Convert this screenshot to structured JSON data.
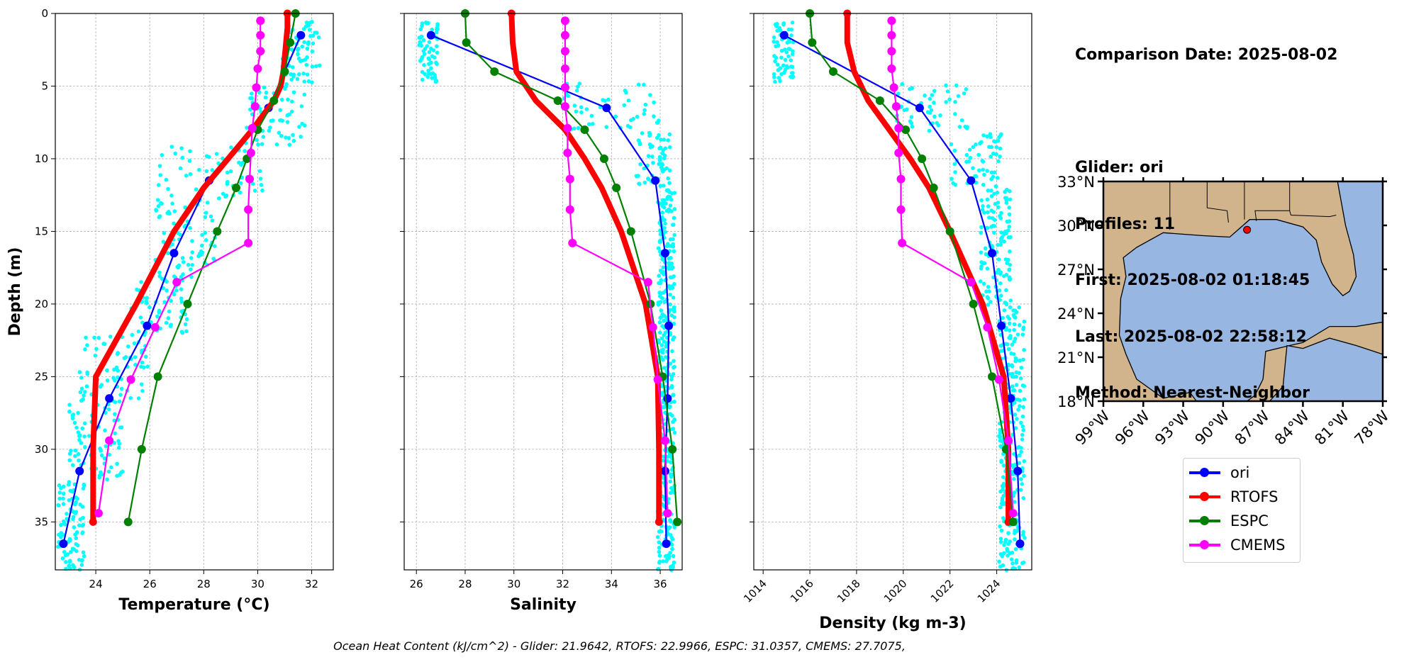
{
  "info": {
    "date_line": "Comparison Date: 2025-08-02",
    "glider_line": "Glider: ori",
    "profiles_line": "Profiles: 11",
    "first_line": "First: 2025-08-02 01:18:45",
    "last_line": "Last: 2025-08-02 22:58:12",
    "method_line": "Method: Nearest-Neighbor"
  },
  "footer": "Ocean Heat Content (kJ/cm^2) - Glider: 21.9642,  RTOFS: 22.9966,  ESPC: 31.0357,  CMEMS: 27.7075,",
  "legend": [
    {
      "name": "ori",
      "color": "#0000ff"
    },
    {
      "name": "RTOFS",
      "color": "#ff0000"
    },
    {
      "name": "ESPC",
      "color": "#008000"
    },
    {
      "name": "CMEMS",
      "color": "#ff00ff"
    }
  ],
  "colors": {
    "glider_obs": "#00ffff",
    "ori": "#0000ff",
    "RTOFS": "#ff0000",
    "ESPC": "#008000",
    "CMEMS": "#ff00ff",
    "land": "#d2b48c",
    "ocean": "#98b6e2"
  },
  "chart_data": [
    {
      "type": "line",
      "xlabel": "Temperature (°C)",
      "ylabel": "Depth (m)",
      "xlim": [
        22.5,
        32.8
      ],
      "ylim": [
        38.3,
        0
      ],
      "x_ticks": [
        "24",
        "26",
        "28",
        "30",
        "32"
      ],
      "y_ticks": [
        "0",
        "5",
        "10",
        "15",
        "20",
        "25",
        "30",
        "35"
      ],
      "grid": true,
      "series": [
        {
          "name": "ori",
          "depth": [
            1.5,
            6.5,
            11.5,
            16.5,
            21.5,
            26.5,
            31.5,
            36.5
          ],
          "values": [
            31.6,
            30.4,
            28.2,
            26.9,
            25.9,
            24.5,
            23.4,
            22.8
          ]
        },
        {
          "name": "RTOFS",
          "depth": [
            0,
            1,
            2,
            3,
            4,
            5,
            6,
            8,
            10,
            12,
            15,
            20,
            25,
            30,
            35
          ],
          "values": [
            31.1,
            31.1,
            31.05,
            31.0,
            30.95,
            30.85,
            30.6,
            29.8,
            28.9,
            28.0,
            26.9,
            25.5,
            24.0,
            23.9,
            23.9
          ]
        },
        {
          "name": "ESPC",
          "depth": [
            0,
            2,
            4,
            6,
            8,
            10,
            12,
            15,
            20,
            25,
            30,
            35
          ],
          "values": [
            31.4,
            31.2,
            31.0,
            30.6,
            30.0,
            29.6,
            29.2,
            28.5,
            27.4,
            26.3,
            25.7,
            25.2
          ]
        },
        {
          "name": "CMEMS",
          "depth": [
            0.5,
            1.5,
            2.6,
            3.8,
            5.1,
            6.4,
            7.9,
            9.6,
            11.4,
            13.5,
            15.8,
            18.5,
            21.6,
            25.2,
            29.4,
            34.4
          ],
          "values": [
            30.1,
            30.1,
            30.1,
            30.0,
            29.95,
            29.9,
            29.8,
            29.75,
            29.7,
            29.65,
            29.65,
            27.0,
            26.2,
            25.3,
            24.5,
            24.1
          ]
        }
      ]
    },
    {
      "type": "line",
      "xlabel": "Salinity",
      "xlim": [
        25.5,
        36.9
      ],
      "ylim": [
        38.3,
        0
      ],
      "x_ticks": [
        "26",
        "28",
        "30",
        "32",
        "34",
        "36"
      ],
      "grid": true,
      "series": [
        {
          "name": "ori",
          "depth": [
            1.5,
            6.5,
            11.5,
            16.5,
            21.5,
            26.5,
            31.5,
            36.5
          ],
          "values": [
            26.6,
            33.8,
            35.8,
            36.2,
            36.35,
            36.3,
            36.2,
            36.25
          ]
        },
        {
          "name": "RTOFS",
          "depth": [
            0,
            2,
            4,
            6,
            8,
            10,
            12,
            15,
            20,
            25,
            30,
            35
          ],
          "values": [
            29.9,
            29.95,
            30.1,
            30.9,
            32.1,
            32.9,
            33.6,
            34.4,
            35.4,
            35.9,
            35.95,
            35.95
          ]
        },
        {
          "name": "ESPC",
          "depth": [
            0,
            2,
            4,
            6,
            8,
            10,
            12,
            15,
            20,
            25,
            30,
            35
          ],
          "values": [
            28.0,
            28.05,
            29.2,
            31.8,
            32.9,
            33.7,
            34.2,
            34.8,
            35.6,
            36.1,
            36.5,
            36.7
          ]
        },
        {
          "name": "CMEMS",
          "depth": [
            0.5,
            1.5,
            2.6,
            3.8,
            5.1,
            6.4,
            7.9,
            9.6,
            11.4,
            13.5,
            15.8,
            18.5,
            21.6,
            25.2,
            29.4,
            34.4
          ],
          "values": [
            32.1,
            32.1,
            32.1,
            32.1,
            32.1,
            32.1,
            32.2,
            32.2,
            32.3,
            32.3,
            32.4,
            35.5,
            35.7,
            35.9,
            36.2,
            36.3
          ]
        }
      ]
    },
    {
      "type": "line",
      "xlabel": "Density (kg m-3)",
      "xlim": [
        1013.6,
        1025.5
      ],
      "ylim": [
        38.3,
        0
      ],
      "x_ticks": [
        "1014",
        "1016",
        "1018",
        "1020",
        "1022",
        "1024"
      ],
      "grid": true,
      "series": [
        {
          "name": "ori",
          "depth": [
            1.5,
            6.5,
            11.5,
            16.5,
            21.5,
            26.5,
            31.5,
            36.5
          ],
          "values": [
            1014.9,
            1020.7,
            1022.9,
            1023.8,
            1024.2,
            1024.6,
            1024.9,
            1025.0
          ]
        },
        {
          "name": "RTOFS",
          "depth": [
            0,
            2,
            4,
            6,
            8,
            10,
            12,
            15,
            20,
            25,
            30,
            35
          ],
          "values": [
            1017.6,
            1017.6,
            1017.9,
            1018.5,
            1019.4,
            1020.3,
            1021.1,
            1022.0,
            1023.4,
            1024.3,
            1024.5,
            1024.5
          ]
        },
        {
          "name": "ESPC",
          "depth": [
            0,
            2,
            4,
            6,
            8,
            10,
            12,
            15,
            20,
            25,
            30,
            35
          ],
          "values": [
            1016.0,
            1016.1,
            1017.0,
            1019.0,
            1020.1,
            1020.8,
            1021.3,
            1022.0,
            1023.0,
            1023.8,
            1024.4,
            1024.7
          ]
        },
        {
          "name": "CMEMS",
          "depth": [
            0.5,
            1.5,
            2.6,
            3.8,
            5.1,
            6.4,
            7.9,
            9.6,
            11.4,
            13.5,
            15.8,
            18.5,
            21.6,
            25.2,
            29.4,
            34.4
          ],
          "values": [
            1019.5,
            1019.5,
            1019.5,
            1019.5,
            1019.6,
            1019.7,
            1019.8,
            1019.8,
            1019.9,
            1019.9,
            1019.95,
            1022.9,
            1023.6,
            1024.1,
            1024.5,
            1024.7
          ]
        }
      ]
    },
    {
      "type": "map",
      "lat_ticks": [
        "33°N",
        "30°N",
        "27°N",
        "24°N",
        "21°N",
        "18°N"
      ],
      "lon_ticks": [
        "99°W",
        "96°W",
        "93°W",
        "90°W",
        "87°W",
        "84°W",
        "81°W",
        "78°W"
      ],
      "lat_range": [
        18,
        33
      ],
      "lon_range": [
        -99,
        -78
      ],
      "glider_position": {
        "lon": -88.2,
        "lat": 29.7
      }
    }
  ]
}
